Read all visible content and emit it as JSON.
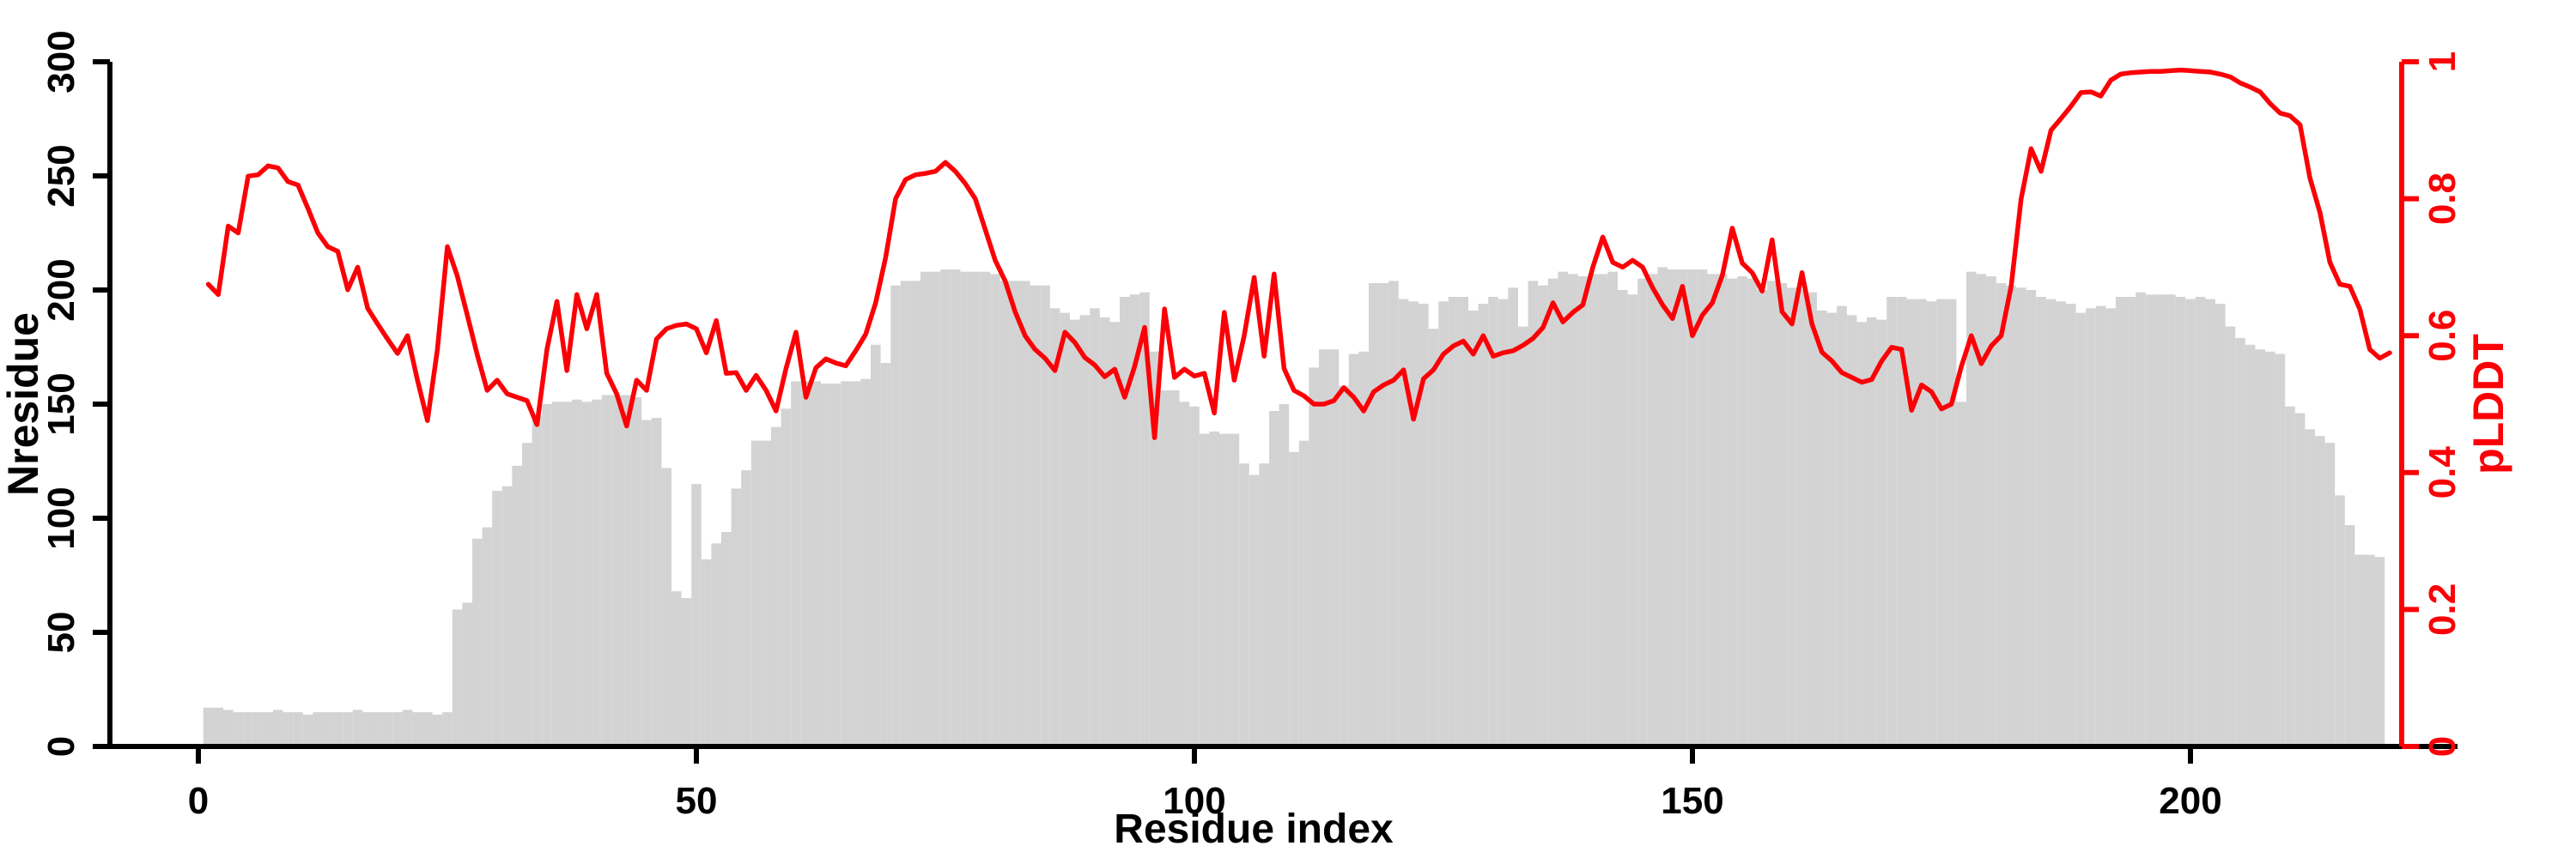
{
  "chart_data": {
    "type": "bar",
    "subtype": "dual-axis bar+line",
    "title": "",
    "xlabel": "Residue index",
    "ylabel_left": "Nresidue",
    "ylabel_right": "pLDDT",
    "x_ticks": [
      0,
      50,
      100,
      150,
      200
    ],
    "y_left_ticks": [
      0,
      50,
      100,
      150,
      200,
      250,
      300
    ],
    "y_right_ticks": [
      0,
      0.2,
      0.4,
      0.6,
      0.8,
      1
    ],
    "xlim": [
      0,
      220
    ],
    "ylim_left": [
      0,
      300
    ],
    "ylim_right": [
      0,
      1
    ],
    "grid": false,
    "legend_position": "none",
    "bar_color": "#d3d3d3",
    "line_color": "#fb0006",
    "axis_color": "#000000",
    "right_axis_color": "#fb0006",
    "residue_start": 1,
    "series": [
      {
        "name": "Nresidue",
        "type": "bar",
        "axis": "left",
        "values": [
          17,
          17,
          16,
          15,
          15,
          15,
          15,
          16,
          15,
          15,
          14,
          15,
          15,
          15,
          15,
          16,
          15,
          15,
          15,
          15,
          16,
          15,
          15,
          14,
          15,
          60,
          63,
          91,
          96,
          112,
          114,
          123,
          133,
          145,
          150,
          151,
          151,
          152,
          151,
          152,
          154,
          154,
          154,
          153,
          143,
          144,
          122,
          68,
          65,
          115,
          82,
          89,
          94,
          113,
          121,
          134,
          134,
          140,
          148,
          160,
          160,
          160,
          159,
          159,
          160,
          160,
          161,
          176,
          168,
          202,
          204,
          204,
          208,
          208,
          209,
          209,
          208,
          208,
          208,
          207,
          204,
          204,
          204,
          202,
          202,
          192,
          190,
          187,
          189,
          192,
          188,
          186,
          197,
          198,
          199,
          173,
          156,
          156,
          151,
          149,
          137,
          138,
          137,
          137,
          124,
          119,
          124,
          147,
          150,
          129,
          134,
          166,
          174,
          174,
          158,
          172,
          173,
          203,
          203,
          204,
          196,
          195,
          194,
          183,
          195,
          197,
          197,
          191,
          194,
          197,
          196,
          201,
          184,
          204,
          202,
          205,
          208,
          207,
          206,
          207,
          207,
          208,
          200,
          198,
          205,
          207,
          210,
          209,
          209,
          209,
          209,
          207,
          207,
          205,
          206,
          205,
          200,
          204,
          203,
          201,
          200,
          199,
          191,
          190,
          193,
          189,
          186,
          188,
          187,
          197,
          197,
          196,
          196,
          195,
          196,
          196,
          151,
          208,
          207,
          206,
          203,
          202,
          201,
          200,
          197,
          196,
          195,
          194,
          190,
          192,
          193,
          192,
          197,
          197,
          199,
          198,
          198,
          198,
          197,
          196,
          197,
          196,
          194,
          184,
          179,
          176,
          174,
          173,
          172,
          149,
          146,
          139,
          136,
          133,
          110,
          97,
          84,
          84,
          83,
          0
        ]
      },
      {
        "name": "pLDDT",
        "type": "line",
        "axis": "right",
        "values": [
          0.675,
          0.66,
          0.76,
          0.75,
          0.833,
          0.835,
          0.848,
          0.845,
          0.825,
          0.82,
          0.786,
          0.75,
          0.73,
          0.723,
          0.667,
          0.7,
          0.64,
          0.617,
          0.595,
          0.574,
          0.6,
          0.535,
          0.476,
          0.58,
          0.73,
          0.687,
          0.63,
          0.572,
          0.52,
          0.535,
          0.515,
          0.51,
          0.505,
          0.47,
          0.58,
          0.65,
          0.549,
          0.66,
          0.61,
          0.66,
          0.545,
          0.515,
          0.468,
          0.535,
          0.52,
          0.595,
          0.61,
          0.615,
          0.617,
          0.61,
          0.575,
          0.622,
          0.545,
          0.546,
          0.52,
          0.542,
          0.52,
          0.49,
          0.552,
          0.605,
          0.51,
          0.553,
          0.566,
          0.56,
          0.556,
          0.578,
          0.602,
          0.648,
          0.714,
          0.8,
          0.828,
          0.835,
          0.837,
          0.84,
          0.853,
          0.84,
          0.822,
          0.8,
          0.755,
          0.71,
          0.68,
          0.635,
          0.6,
          0.58,
          0.567,
          0.549,
          0.605,
          0.59,
          0.568,
          0.557,
          0.54,
          0.551,
          0.51,
          0.555,
          0.612,
          0.451,
          0.639,
          0.539,
          0.551,
          0.541,
          0.545,
          0.487,
          0.634,
          0.535,
          0.6,
          0.685,
          0.57,
          0.69,
          0.552,
          0.52,
          0.512,
          0.5,
          0.5,
          0.505,
          0.524,
          0.51,
          0.49,
          0.518,
          0.528,
          0.535,
          0.55,
          0.478,
          0.537,
          0.55,
          0.573,
          0.585,
          0.592,
          0.573,
          0.6,
          0.57,
          0.575,
          0.578,
          0.586,
          0.596,
          0.612,
          0.648,
          0.62,
          0.634,
          0.645,
          0.7,
          0.744,
          0.707,
          0.7,
          0.71,
          0.7,
          0.67,
          0.645,
          0.625,
          0.672,
          0.6,
          0.63,
          0.648,
          0.688,
          0.757,
          0.706,
          0.692,
          0.665,
          0.74,
          0.635,
          0.617,
          0.692,
          0.617,
          0.576,
          0.563,
          0.546,
          0.539,
          0.532,
          0.536,
          0.563,
          0.583,
          0.58,
          0.491,
          0.528,
          0.518,
          0.493,
          0.5,
          0.555,
          0.6,
          0.559,
          0.585,
          0.6,
          0.672,
          0.8,
          0.873,
          0.84,
          0.9,
          0.917,
          0.935,
          0.955,
          0.956,
          0.95,
          0.973,
          0.982,
          0.984,
          0.985,
          0.986,
          0.986,
          0.987,
          0.988,
          0.987,
          0.986,
          0.985,
          0.982,
          0.978,
          0.969,
          0.963,
          0.956,
          0.939,
          0.925,
          0.921,
          0.908,
          0.83,
          0.78,
          0.707,
          0.675,
          0.672,
          0.639,
          0.58,
          0.567,
          0.575
        ]
      }
    ]
  }
}
